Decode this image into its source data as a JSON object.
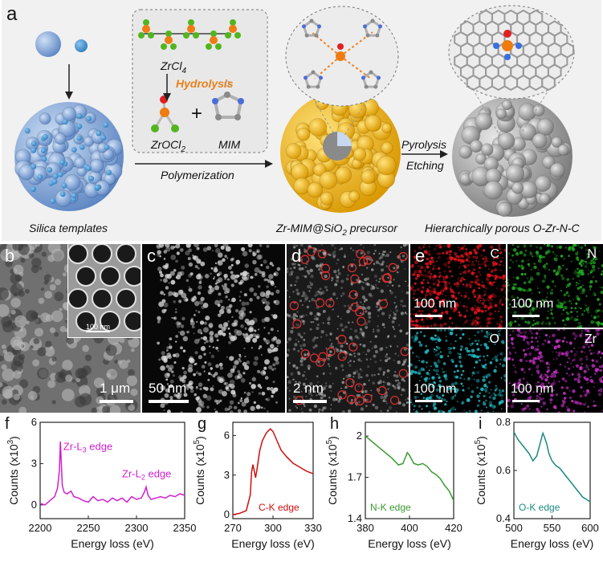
{
  "schematic": {
    "label": "a",
    "zrcl4": "ZrCl",
    "zrcl4_sub": "4",
    "hydrolysis": "Hydrolysis",
    "zrocl2": "ZrOCl",
    "zrocl2_sub": "2",
    "plus": "+",
    "mim": "MIM",
    "polymerization": "Polymerization",
    "pyrolysis": "Pyrolysis",
    "etching": "Etching",
    "silica_templates": "Silica templates",
    "precursor_a": "Zr-MIM@SiO",
    "precursor_sub": "2",
    "precursor_b": " precursor",
    "porous": "Hierarchically porous O-Zr-N-C"
  },
  "micrographs": {
    "b": {
      "label": "b",
      "scale": "1 μm",
      "inset_scale": "100 nm"
    },
    "c": {
      "label": "c",
      "scale": "50 nm"
    },
    "d": {
      "label": "d",
      "scale": "2 nm"
    },
    "e": {
      "label": "e",
      "maps": [
        {
          "element": "C",
          "scale": "100 nm",
          "color": "#e0141c"
        },
        {
          "element": "N",
          "scale": "100 nm",
          "color": "#22a822"
        },
        {
          "element": "O",
          "scale": "100 nm",
          "color": "#20b8c0"
        },
        {
          "element": "Zr",
          "scale": "100 nm",
          "color": "#c030c0"
        }
      ]
    }
  },
  "colors": {
    "f": "#d020d0",
    "g": "#cc1010",
    "h": "#3a9a30",
    "i": "#1a8a80"
  },
  "chart_data": [
    {
      "type": "line",
      "label": "f",
      "xlabel": "Energy loss (eV)",
      "ylabel": "Counts (x10",
      "ylabel_sup": "3",
      "ylabel_end": ")",
      "xlim": [
        2200,
        2350
      ],
      "ylim": [
        -1,
        6
      ],
      "xticks": [
        2200,
        2250,
        2300,
        2350
      ],
      "yticks": [
        0,
        3,
        6
      ],
      "annotations": [
        "Zr-L",
        "3",
        " edge",
        "Zr-L",
        "2",
        " edge"
      ],
      "x": [
        2200,
        2205,
        2210,
        2215,
        2218,
        2220,
        2221,
        2222,
        2223,
        2225,
        2228,
        2232,
        2235,
        2240,
        2245,
        2250,
        2255,
        2260,
        2265,
        2270,
        2275,
        2280,
        2285,
        2290,
        2295,
        2300,
        2305,
        2308,
        2310,
        2312,
        2315,
        2320,
        2325,
        2330,
        2335,
        2340,
        2345,
        2350
      ],
      "y": [
        0.1,
        0.0,
        0.3,
        0.6,
        1.2,
        2.5,
        4.6,
        3.0,
        1.4,
        0.9,
        0.8,
        1.0,
        0.6,
        0.5,
        0.3,
        0.2,
        0.6,
        0.3,
        0.4,
        0.2,
        0.5,
        0.3,
        0.5,
        0.2,
        0.6,
        0.4,
        0.5,
        0.9,
        1.3,
        0.7,
        0.4,
        0.5,
        0.6,
        0.5,
        0.7,
        0.6,
        0.8,
        0.7
      ]
    },
    {
      "type": "line",
      "label": "g",
      "xlabel": "Energy loss (eV)",
      "ylabel": "Counts (x10",
      "ylabel_sup": "5",
      "ylabel_end": ")",
      "xlim": [
        270,
        330
      ],
      "ylim": [
        -0.3,
        7
      ],
      "xticks": [
        270,
        300,
        330
      ],
      "yticks": [
        0,
        3,
        6
      ],
      "annotations": [
        "C-K edge"
      ],
      "x": [
        270,
        275,
        280,
        283,
        284,
        285,
        286,
        287,
        288,
        290,
        292,
        295,
        298,
        300,
        303,
        306,
        310,
        315,
        320,
        325,
        330
      ],
      "y": [
        0.0,
        0.1,
        0.3,
        1.5,
        3.2,
        3.8,
        3.3,
        2.8,
        3.4,
        4.8,
        5.6,
        6.2,
        6.5,
        6.3,
        5.6,
        4.9,
        4.4,
        3.9,
        3.6,
        3.3,
        3.1
      ]
    },
    {
      "type": "line",
      "label": "h",
      "xlabel": "Energy loss (eV)",
      "ylabel": "Counts (x10",
      "ylabel_sup": "5",
      "ylabel_end": ")",
      "xlim": [
        380,
        420
      ],
      "ylim": [
        1.4,
        2.1
      ],
      "xticks": [
        380,
        400,
        420
      ],
      "yticks": [
        1.4,
        1.7,
        2.0
      ],
      "annotations": [
        "N-K edge"
      ],
      "x": [
        380,
        383,
        386,
        389,
        392,
        395,
        397,
        399,
        400,
        402,
        404,
        406,
        408,
        410,
        412,
        414,
        416,
        418,
        420
      ],
      "y": [
        2.0,
        1.96,
        1.92,
        1.88,
        1.84,
        1.79,
        1.8,
        1.88,
        1.86,
        1.8,
        1.79,
        1.8,
        1.78,
        1.74,
        1.72,
        1.69,
        1.64,
        1.6,
        1.53
      ]
    },
    {
      "type": "line",
      "label": "i",
      "xlabel": "Energy loss (eV)",
      "ylabel": "Counts (x10",
      "ylabel_sup": "5",
      "ylabel_end": ")",
      "xlim": [
        500,
        600
      ],
      "ylim": [
        0.4,
        0.8
      ],
      "xticks": [
        500,
        550,
        600
      ],
      "yticks": [
        0.4,
        0.6,
        0.8
      ],
      "annotations": [
        "O-K edge"
      ],
      "x": [
        500,
        505,
        510,
        515,
        520,
        525,
        530,
        535,
        538,
        540,
        543,
        546,
        550,
        555,
        560,
        565,
        570,
        575,
        580,
        585,
        590,
        595,
        600
      ],
      "y": [
        0.76,
        0.73,
        0.71,
        0.69,
        0.67,
        0.64,
        0.66,
        0.72,
        0.755,
        0.74,
        0.71,
        0.67,
        0.64,
        0.62,
        0.61,
        0.59,
        0.57,
        0.55,
        0.53,
        0.51,
        0.49,
        0.48,
        0.47
      ]
    }
  ]
}
